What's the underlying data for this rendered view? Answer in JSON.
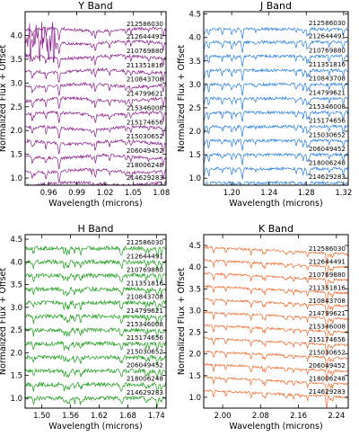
{
  "figure": {
    "ylabel": "Normalized Flux + Offset",
    "xlabel": "Wavelength (microns)"
  },
  "chart_data": [
    {
      "type": "line",
      "title": "Y Band",
      "xlabel": "Wavelength (microns)",
      "ylabel": "Normalized Flux + Offset",
      "xlim": [
        0.935,
        1.085
      ],
      "ylim": [
        0.85,
        4.5
      ],
      "xticks": [
        "0.96",
        "0.99",
        "1.02",
        "1.05",
        "1.08"
      ],
      "yticks": [
        "1.0",
        "1.5",
        "2.0",
        "2.5",
        "3.0",
        "3.5",
        "4.0"
      ],
      "color": "#8b1f8b",
      "grid": false,
      "series": [
        {
          "name": "212586030",
          "offset": 4.12
        },
        {
          "name": "212644491",
          "offset": 3.85
        },
        {
          "name": "210769880",
          "offset": 3.55
        },
        {
          "name": "211351816",
          "offset": 3.25
        },
        {
          "name": "210843708",
          "offset": 2.95
        },
        {
          "name": "214799621",
          "offset": 2.65
        },
        {
          "name": "215346008",
          "offset": 2.35
        },
        {
          "name": "215174656",
          "offset": 2.05
        },
        {
          "name": "215030652",
          "offset": 1.75
        },
        {
          "name": "206049452",
          "offset": 1.45
        },
        {
          "name": "218006248",
          "offset": 1.15
        },
        {
          "name": "214629283",
          "offset": 0.88
        }
      ]
    },
    {
      "type": "line",
      "title": "J Band",
      "xlabel": "Wavelength (microns)",
      "ylabel": "Normalized Flux + Offset",
      "xlim": [
        1.17,
        1.325
      ],
      "ylim": [
        0.85,
        4.55
      ],
      "xticks": [
        "1.20",
        "1.24",
        "1.28",
        "1.32"
      ],
      "yticks": [
        "1.0",
        "1.5",
        "2.0",
        "2.5",
        "3.0",
        "3.5",
        "4.0",
        "4.5"
      ],
      "color": "#2a7fe0",
      "grid": false,
      "series": [
        {
          "name": "212586030",
          "offset": 4.18
        },
        {
          "name": "212644491",
          "offset": 3.9
        },
        {
          "name": "210769880",
          "offset": 3.6
        },
        {
          "name": "211351816",
          "offset": 3.3
        },
        {
          "name": "210843708",
          "offset": 3.0
        },
        {
          "name": "214799621",
          "offset": 2.7
        },
        {
          "name": "215346008",
          "offset": 2.4
        },
        {
          "name": "215174656",
          "offset": 2.1
        },
        {
          "name": "215030652",
          "offset": 1.8
        },
        {
          "name": "206049452",
          "offset": 1.5
        },
        {
          "name": "218006248",
          "offset": 1.2
        },
        {
          "name": "214629283",
          "offset": 0.9
        }
      ]
    },
    {
      "type": "line",
      "title": "H Band",
      "xlabel": "Wavelength (microns)",
      "ylabel": "Normalized Flux + Offset",
      "xlim": [
        1.465,
        1.76
      ],
      "ylim": [
        0.78,
        4.6
      ],
      "xticks": [
        "1.50",
        "1.56",
        "1.62",
        "1.68",
        "1.74"
      ],
      "yticks": [
        "1.0",
        "1.5",
        "2.0",
        "2.5",
        "3.0",
        "3.5",
        "4.0",
        "4.5"
      ],
      "color": "#1f9e1f",
      "grid": false,
      "series": [
        {
          "name": "212586030",
          "offset": 4.3
        },
        {
          "name": "212644491",
          "offset": 4.0
        },
        {
          "name": "210769880",
          "offset": 3.7
        },
        {
          "name": "211351816",
          "offset": 3.4
        },
        {
          "name": "210843708",
          "offset": 3.1
        },
        {
          "name": "214799621",
          "offset": 2.8
        },
        {
          "name": "215346008",
          "offset": 2.5
        },
        {
          "name": "215174656",
          "offset": 2.2
        },
        {
          "name": "215030652",
          "offset": 1.9
        },
        {
          "name": "206049452",
          "offset": 1.6
        },
        {
          "name": "218006248",
          "offset": 1.3
        },
        {
          "name": "214629283",
          "offset": 1.0
        }
      ]
    },
    {
      "type": "line",
      "title": "K Band",
      "xlabel": "Wavelength (microns)",
      "ylabel": "Normalized Flux + Offset",
      "xlim": [
        1.96,
        2.265
      ],
      "ylim": [
        0.75,
        4.75
      ],
      "xticks": [
        "2.00",
        "2.08",
        "2.16",
        "2.24"
      ],
      "yticks": [
        "1.0",
        "1.5",
        "2.0",
        "2.5",
        "3.0",
        "3.5",
        "4.0",
        "4.5"
      ],
      "color": "#f0692a",
      "grid": false,
      "series": [
        {
          "name": "212586030",
          "offset": 4.3
        },
        {
          "name": "212644491",
          "offset": 4.0
        },
        {
          "name": "210769880",
          "offset": 3.7
        },
        {
          "name": "211351816",
          "offset": 3.4
        },
        {
          "name": "210843708",
          "offset": 3.1
        },
        {
          "name": "214799621",
          "offset": 2.8
        },
        {
          "name": "215346008",
          "offset": 2.5
        },
        {
          "name": "215174656",
          "offset": 2.2
        },
        {
          "name": "215030652",
          "offset": 1.9
        },
        {
          "name": "206049452",
          "offset": 1.6
        },
        {
          "name": "218006248",
          "offset": 1.3
        },
        {
          "name": "214629283",
          "offset": 1.0
        }
      ]
    }
  ]
}
